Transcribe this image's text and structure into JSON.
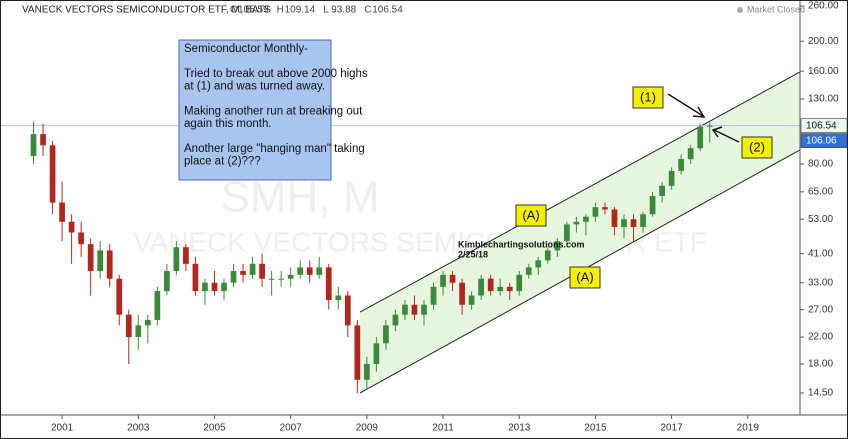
{
  "chart_data": {
    "type": "candlestick",
    "title": "VANECK VECTORS SEMICONDUCTOR ETF, M, BATS",
    "ohlc_prefixes": [
      "O",
      "H",
      "L",
      "C"
    ],
    "status": "Market Closed",
    "watermark": [
      "SMH, M",
      "VANECK VECTORS SEMICONDUCTOR ETF"
    ],
    "log_scale": true,
    "grid": false,
    "up_color": "#3a8a3a",
    "down_color": "#b3261e",
    "x": [
      2000.25,
      2000.5,
      2000.75,
      2001.0,
      2001.25,
      2001.5,
      2001.75,
      2002.0,
      2002.25,
      2002.5,
      2002.75,
      2003.0,
      2003.25,
      2003.5,
      2003.75,
      2004.0,
      2004.25,
      2004.5,
      2004.75,
      2005.0,
      2005.25,
      2005.5,
      2005.75,
      2006.0,
      2006.25,
      2006.5,
      2006.75,
      2007.0,
      2007.25,
      2007.5,
      2007.75,
      2008.0,
      2008.25,
      2008.5,
      2008.75,
      2009.0,
      2009.25,
      2009.5,
      2009.75,
      2010.0,
      2010.25,
      2010.5,
      2010.75,
      2011.0,
      2011.25,
      2011.5,
      2011.75,
      2012.0,
      2012.25,
      2012.5,
      2012.75,
      2013.0,
      2013.25,
      2013.5,
      2013.75,
      2014.0,
      2014.25,
      2014.5,
      2014.75,
      2015.0,
      2015.25,
      2015.5,
      2015.75,
      2016.0,
      2016.25,
      2016.5,
      2016.75,
      2017.0,
      2017.25,
      2017.5,
      2017.75,
      2018.0
    ],
    "open": [
      85,
      100,
      92,
      60,
      52,
      48,
      44,
      36,
      42,
      34,
      26,
      22,
      24,
      25,
      31,
      36,
      43,
      38,
      31,
      33,
      31,
      33,
      36,
      35,
      38,
      34,
      34,
      34,
      35,
      37,
      35,
      37,
      29,
      30,
      24,
      16,
      18,
      21,
      24,
      26,
      28,
      26,
      28,
      32,
      35,
      33,
      28,
      30,
      34,
      31,
      32,
      31,
      35,
      37,
      39,
      42,
      45,
      51,
      52,
      54,
      58,
      57,
      50,
      53,
      50,
      55,
      63,
      68,
      76,
      83,
      90,
      105.59
    ],
    "high": [
      110,
      108,
      95,
      70,
      55,
      52,
      46,
      45,
      44,
      35,
      27,
      26,
      26,
      32,
      38,
      45,
      44,
      40,
      34,
      36,
      34,
      38,
      38,
      40,
      41,
      36,
      36,
      37,
      39,
      39,
      40,
      38,
      32,
      31,
      25,
      19,
      22,
      25,
      27,
      29,
      30,
      29,
      33,
      36,
      36,
      34,
      31,
      35,
      35,
      34,
      33,
      36,
      38,
      40,
      43,
      46,
      52,
      54,
      55,
      60,
      60,
      58,
      55,
      55,
      56,
      65,
      70,
      78,
      86,
      92,
      108,
      109.14
    ],
    "low": [
      80,
      85,
      55,
      45,
      38,
      40,
      30,
      34,
      32,
      24,
      18,
      20,
      21,
      24,
      30,
      35,
      36,
      30,
      28,
      30,
      29,
      32,
      33,
      34,
      32,
      30,
      32,
      32,
      34,
      33,
      34,
      27,
      27,
      22,
      14.5,
      15,
      17,
      20,
      23,
      25,
      25,
      24,
      27,
      30,
      31,
      26,
      27,
      29,
      30,
      30,
      29,
      30,
      34,
      35,
      38,
      40,
      44,
      48,
      47,
      52,
      55,
      47,
      46,
      45,
      48,
      54,
      60,
      66,
      74,
      80,
      88,
      93.88
    ],
    "close": [
      100,
      92,
      60,
      52,
      48,
      44,
      36,
      42,
      34,
      26,
      22,
      24,
      25,
      31,
      36,
      43,
      38,
      31,
      33,
      31,
      33,
      36,
      35,
      38,
      34,
      34,
      34,
      35,
      37,
      35,
      37,
      29,
      30,
      24,
      16,
      18,
      21,
      24,
      26,
      28,
      26,
      28,
      32,
      35,
      33,
      28,
      30,
      34,
      31,
      32,
      31,
      35,
      37,
      39,
      42,
      45,
      51,
      52,
      54,
      58,
      57,
      50,
      53,
      50,
      55,
      63,
      68,
      76,
      83,
      90,
      105.59,
      106.54
    ],
    "xlim": [
      1999.37,
      2020.37
    ],
    "xticks": [
      2001,
      2003,
      2005,
      2007,
      2009,
      2011,
      2013,
      2015,
      2017,
      2019
    ],
    "ylim": [
      12.3,
      272
    ],
    "yticks": [
      {
        "value": 14.5,
        "label": "14.50"
      },
      {
        "value": 18,
        "label": "18.00"
      },
      {
        "value": 22,
        "label": "22.00"
      },
      {
        "value": 27,
        "label": "27.00"
      },
      {
        "value": 33,
        "label": "33.00"
      },
      {
        "value": 41,
        "label": "41.00"
      },
      {
        "value": 53,
        "label": "53.00"
      },
      {
        "value": 65,
        "label": "65.00"
      },
      {
        "value": 80,
        "label": "80.00"
      },
      {
        "value": 130,
        "label": "130.00"
      },
      {
        "value": 160,
        "label": "160.00"
      },
      {
        "value": 200,
        "label": "200.00"
      },
      {
        "value": 260,
        "label": "260.00"
      }
    ],
    "second_price_tag": 106.06,
    "channel": {
      "x": [
        2008.82,
        2020.37
      ],
      "upper": [
        26.5,
        159
      ],
      "lower": [
        14.5,
        88.9
      ]
    },
    "note_lines": [
      "Semiconductor Monthly-",
      "",
      "Tried to break out above 2000 highs",
      "at (1) and was turned away.",
      "",
      "Making another run at breaking out",
      "again this month.",
      "",
      "Another large \"hanging man\" taking",
      "place at (2)???"
    ],
    "labels": [
      "(1)",
      "(2)",
      "(A)",
      "(A)"
    ],
    "credit": [
      "Kimblechartingsolutions.com",
      "2/25/18"
    ]
  }
}
